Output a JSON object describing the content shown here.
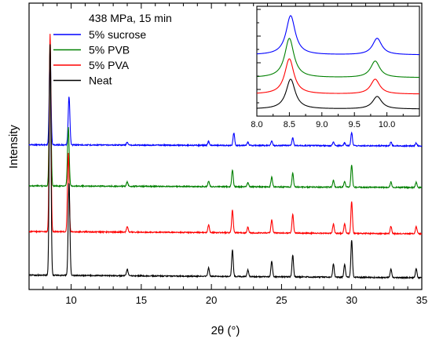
{
  "chart_data": {
    "type": "line",
    "title": "438 MPa, 15 min",
    "xlabel": "2θ (°)",
    "ylabel": "Intensity",
    "xlim": [
      7,
      35
    ],
    "xticks": [
      10,
      15,
      20,
      25,
      30,
      35
    ],
    "y_tick_labels": false,
    "legend_position": "top-left",
    "series": [
      {
        "name": "5% sucrose",
        "color": "#0000ff",
        "peaks": [
          [
            8.5,
            1.0
          ],
          [
            9.85,
            0.5
          ],
          [
            14.0,
            0.03
          ],
          [
            19.8,
            0.04
          ],
          [
            21.6,
            0.13
          ],
          [
            22.6,
            0.03
          ],
          [
            24.3,
            0.05
          ],
          [
            25.8,
            0.08
          ],
          [
            28.7,
            0.04
          ],
          [
            29.5,
            0.03
          ],
          [
            30.0,
            0.14
          ],
          [
            32.8,
            0.04
          ],
          [
            34.6,
            0.03
          ]
        ]
      },
      {
        "name": "5% PVB",
        "color": "#008000",
        "peaks": [
          [
            8.5,
            1.05
          ],
          [
            9.8,
            0.42
          ],
          [
            14.0,
            0.03
          ],
          [
            19.8,
            0.04
          ],
          [
            21.5,
            0.12
          ],
          [
            22.6,
            0.03
          ],
          [
            24.3,
            0.07
          ],
          [
            25.8,
            0.1
          ],
          [
            28.7,
            0.05
          ],
          [
            29.5,
            0.04
          ],
          [
            30.0,
            0.16
          ],
          [
            32.8,
            0.04
          ],
          [
            34.6,
            0.04
          ]
        ]
      },
      {
        "name": "5% PVA",
        "color": "#ff0000",
        "peaks": [
          [
            8.5,
            1.05
          ],
          [
            9.8,
            0.42
          ],
          [
            14.0,
            0.03
          ],
          [
            19.8,
            0.04
          ],
          [
            21.5,
            0.12
          ],
          [
            22.6,
            0.03
          ],
          [
            24.3,
            0.07
          ],
          [
            25.8,
            0.1
          ],
          [
            28.7,
            0.05
          ],
          [
            29.5,
            0.05
          ],
          [
            30.0,
            0.17
          ],
          [
            32.8,
            0.04
          ],
          [
            34.6,
            0.04
          ]
        ]
      },
      {
        "name": "Neat",
        "color": "#000000",
        "peaks": [
          [
            8.5,
            1.05
          ],
          [
            9.85,
            0.42
          ],
          [
            14.0,
            0.03
          ],
          [
            19.8,
            0.04
          ],
          [
            21.5,
            0.12
          ],
          [
            22.6,
            0.03
          ],
          [
            24.3,
            0.07
          ],
          [
            25.8,
            0.1
          ],
          [
            28.7,
            0.06
          ],
          [
            29.5,
            0.06
          ],
          [
            30.0,
            0.17
          ],
          [
            32.8,
            0.04
          ],
          [
            34.6,
            0.04
          ]
        ]
      }
    ],
    "inset": {
      "xlim": [
        8.0,
        10.5
      ],
      "xticks": [
        8.0,
        8.5,
        9.0,
        9.5,
        10.0
      ],
      "tick_labels": [
        "8.0",
        "8.5",
        "9.0",
        "9.5",
        "10.0"
      ],
      "y_tick_labels": false,
      "series_peaks": [
        {
          "name": "5% sucrose",
          "peaks": [
            [
              8.52,
              1.0
            ],
            [
              9.85,
              0.42
            ]
          ]
        },
        {
          "name": "5% PVB",
          "peaks": [
            [
              8.5,
              1.0
            ],
            [
              9.82,
              0.42
            ]
          ]
        },
        {
          "name": "5% PVA",
          "peaks": [
            [
              8.5,
              1.0
            ],
            [
              9.82,
              0.42
            ]
          ]
        },
        {
          "name": "Neat",
          "peaks": [
            [
              8.52,
              1.0
            ],
            [
              9.85,
              0.42
            ]
          ]
        }
      ]
    }
  }
}
